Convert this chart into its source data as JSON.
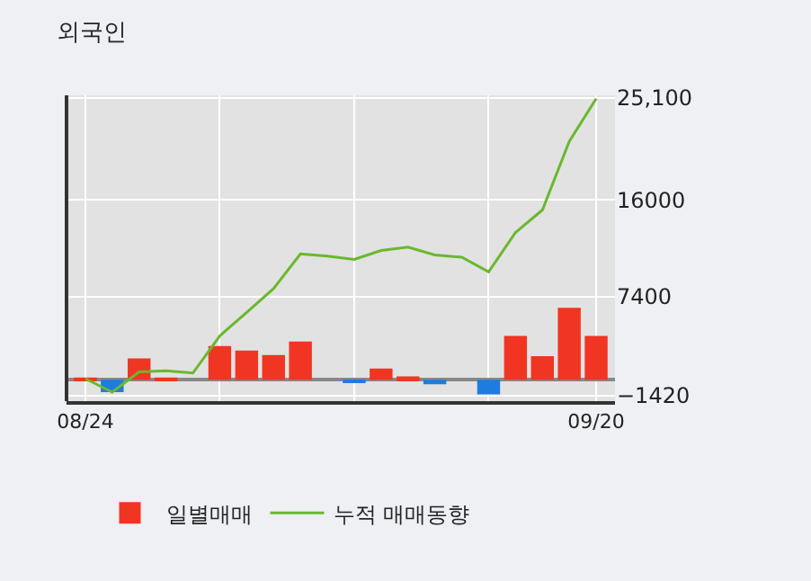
{
  "chart_data": {
    "type": "bar",
    "title": "외국인",
    "categories": [
      "08/24",
      null,
      null,
      null,
      null,
      null,
      null,
      null,
      null,
      null,
      null,
      null,
      null,
      null,
      null,
      null,
      null,
      null,
      null,
      "09/20"
    ],
    "series": [
      {
        "name": "일별매매",
        "colors": [
          "#f03522",
          "#1e7be0",
          "#f03522",
          "#f03522",
          "#f03522",
          "#f03522",
          "#f03522",
          "#f03522",
          "#f03522",
          "#f03522",
          "#1e7be0",
          "#f03522",
          "#f03522",
          "#1e7be0",
          "#f03522",
          "#1e7be0",
          "#f03522",
          "#f03522",
          "#f03522",
          "#f03522"
        ],
        "values": [
          200,
          -1100,
          1900,
          200,
          0,
          3000,
          2600,
          2200,
          3400,
          0,
          -300,
          1000,
          300,
          -400,
          0,
          -1300,
          3900,
          2100,
          6400,
          3900
        ]
      },
      {
        "name": "누적 매매동향",
        "type": "line",
        "color": "#6ab82e",
        "values": [
          100,
          -1100,
          700,
          800,
          600,
          3900,
          6000,
          8100,
          11200,
          11000,
          10700,
          11500,
          11800,
          11100,
          10900,
          9600,
          13100,
          15100,
          21200,
          25000
        ]
      }
    ],
    "ylim": [
      -1900,
      25300
    ],
    "yticks": [
      -1420,
      7400,
      16000,
      {
        "value": 25100,
        "label": "25,100"
      }
    ],
    "grid": true,
    "legend": "bottom",
    "marker": "none",
    "line_style": "solid"
  }
}
